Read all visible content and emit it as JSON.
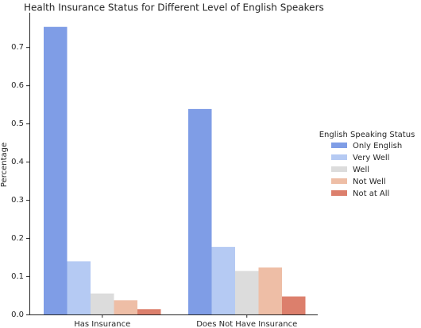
{
  "chart_data": {
    "type": "bar",
    "title": "Health Insurance Status for Different Level of English Speakers",
    "xlabel": "",
    "ylabel": "Percentage",
    "categories": [
      "Has Insurance",
      "Does Not Have Insurance"
    ],
    "series": [
      {
        "name": "Only English",
        "color": "#7f9de6",
        "values": [
          0.753,
          0.538
        ]
      },
      {
        "name": "Very Well",
        "color": "#b5caf3",
        "values": [
          0.139,
          0.177
        ]
      },
      {
        "name": "Well",
        "color": "#dcdcdc",
        "values": [
          0.055,
          0.114
        ]
      },
      {
        "name": "Not Well",
        "color": "#eebea6",
        "values": [
          0.037,
          0.123
        ]
      },
      {
        "name": "Not at All",
        "color": "#dc7f6c",
        "values": [
          0.014,
          0.047
        ]
      }
    ],
    "ylim": [
      0,
      0.79
    ],
    "yticks": [
      "0.0",
      "0.1",
      "0.2",
      "0.3",
      "0.4",
      "0.5",
      "0.6",
      "0.7"
    ],
    "legend": {
      "title": "English Speaking Status",
      "position": "right"
    },
    "grid": false
  }
}
